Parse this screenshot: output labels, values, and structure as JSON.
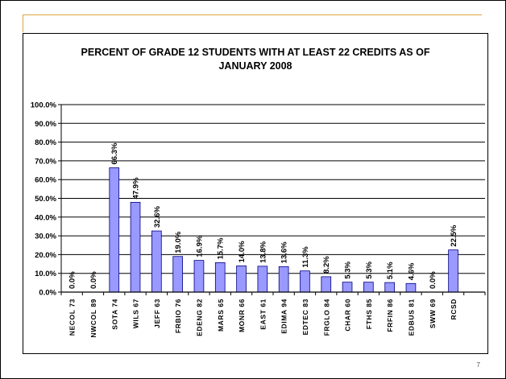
{
  "slide": {
    "page_number": "7"
  },
  "chart_data": {
    "type": "bar",
    "title_lines": [
      "PERCENT OF GRADE 12 STUDENTS WITH AT LEAST 22 CREDITS AS OF",
      "JANUARY 2008"
    ],
    "categories": [
      "NECOL 73",
      "NWCOL 89",
      "SOTA 74",
      "WILS 67",
      "JEFF 63",
      "FRBIO 76",
      "EDENG 82",
      "MARS 65",
      "MONR 66",
      "EAST 61",
      "EDIMA 94",
      "EDTEC 83",
      "FRGLO 84",
      "CHAR 60",
      "FTHS 85",
      "FRFIN 86",
      "EDBUS 81",
      "SWW 69",
      "RCSD",
      ""
    ],
    "values": [
      0.0,
      0.0,
      66.3,
      47.9,
      32.6,
      19.0,
      16.9,
      15.7,
      14.0,
      13.8,
      13.6,
      11.3,
      8.2,
      5.3,
      5.3,
      5.1,
      4.6,
      0.0,
      22.5,
      null
    ],
    "data_labels": [
      "0.0%",
      "0.0%",
      "66.3%",
      "47.9%",
      "32.6%",
      "19.0%",
      "16.9%",
      "15.7%",
      "14.0%",
      "13.8%",
      "13.6%",
      "11.3%",
      "8.2%",
      "5.3%",
      "5.3%",
      "5.1%",
      "4.6%",
      "0.0%",
      "22.5%",
      ""
    ],
    "y_ticks": [
      "0.0%",
      "10.0%",
      "20.0%",
      "30.0%",
      "40.0%",
      "50.0%",
      "60.0%",
      "70.0%",
      "80.0%",
      "90.0%",
      "100.0%"
    ],
    "ylim": [
      0,
      100
    ],
    "grid": true,
    "bar_color": "#9999ff",
    "bar_edge_color": "#000080"
  }
}
